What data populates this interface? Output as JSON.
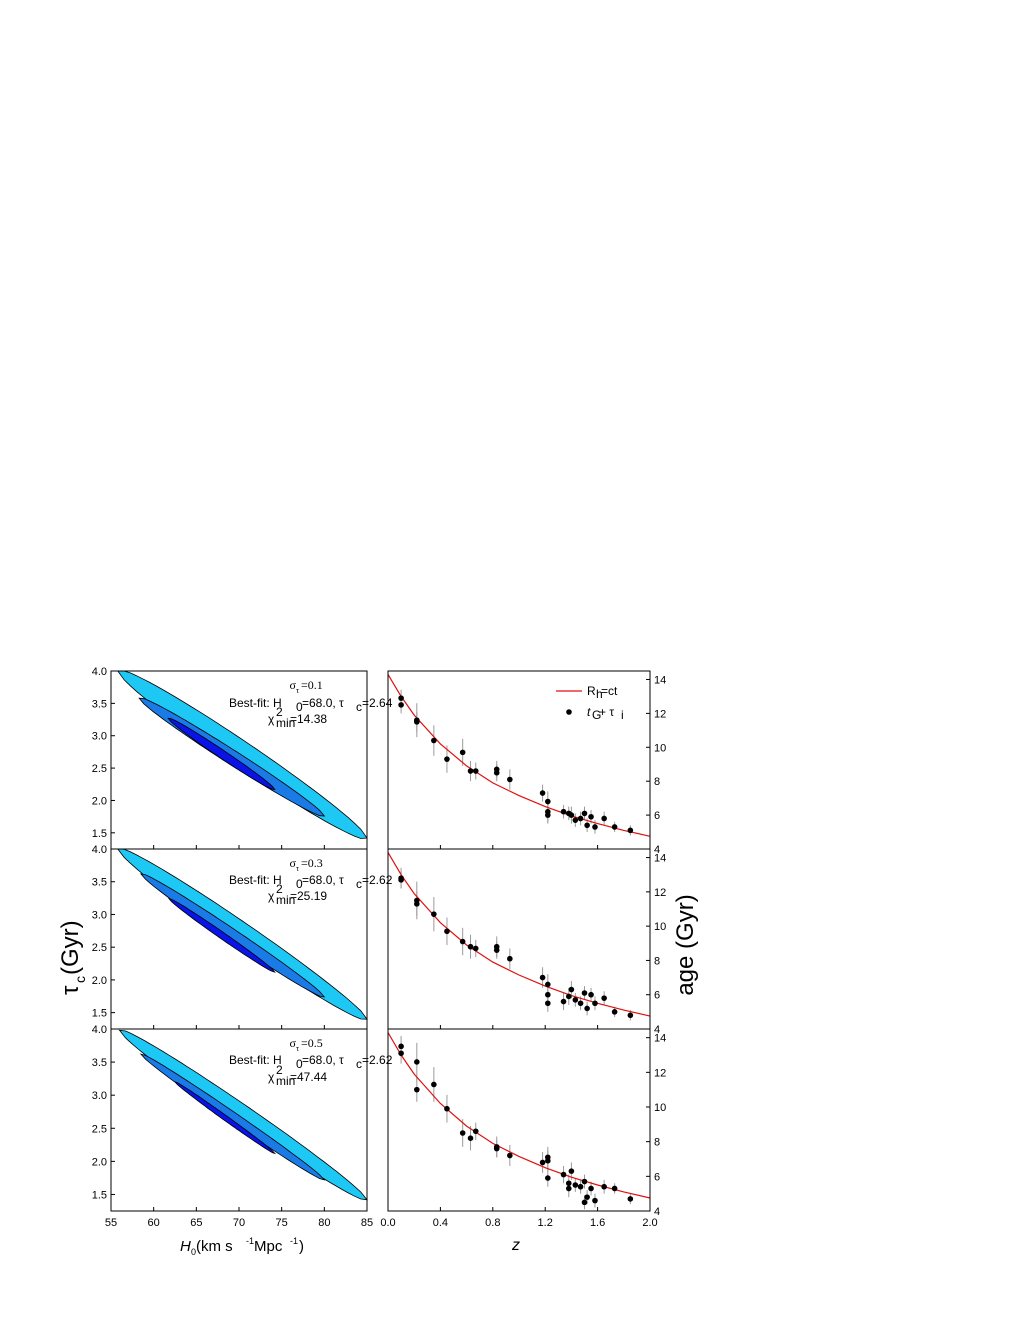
{
  "figure": {
    "left_ylabel_main": "τ",
    "left_ylabel_sub": "c",
    "left_ylabel_unit": " (Gyr)",
    "left_xlabel_main": "H",
    "left_xlabel_sub": "0",
    "left_xlabel_unit": " (km s",
    "left_xlabel_sup1": "-1",
    "left_xlabel_mid": " Mpc",
    "left_xlabel_sup2": "-1",
    "left_xlabel_end": ")",
    "right_ylabel": "age (Gyr)",
    "right_xlabel": "z",
    "legend_line_main": "R",
    "legend_line_sub": "h",
    "legend_line_end": "=ct",
    "legend_dot_t": "t",
    "legend_dot_tsub": "G",
    "legend_dot_plus": " + τ",
    "legend_dot_tausub": "i",
    "colors": {
      "contour_outer": "#1ec8f5",
      "contour_mid": "#1a7be6",
      "contour_inner": "#0a14e6",
      "model_line": "#e01010",
      "points": "#000000",
      "errorbars": "#9a9a9a"
    }
  },
  "panels": [
    {
      "sigma_label": "σ",
      "sigma_sub": "τ",
      "sigma_value": "=0.1",
      "best_fit_line": "Best-fit: H",
      "best_fit_hsub": "0",
      "best_fit_mid": "=68.0, τ",
      "best_fit_tsub": "c",
      "best_fit_value": "=2.64",
      "chi_label": "χ",
      "chi_sup": "2",
      "chi_sub": "min",
      "chi_value": "=14.38"
    },
    {
      "sigma_label": "σ",
      "sigma_sub": "τ",
      "sigma_value": "=0.3",
      "best_fit_line": "Best-fit: H",
      "best_fit_hsub": "0",
      "best_fit_mid": "=68.0, τ",
      "best_fit_tsub": "c",
      "best_fit_value": "=2.62",
      "chi_label": "χ",
      "chi_sup": "2",
      "chi_sub": "min",
      "chi_value": "=25.19"
    },
    {
      "sigma_label": "σ",
      "sigma_sub": "τ",
      "sigma_value": "=0.5",
      "best_fit_line": "Best-fit: H",
      "best_fit_hsub": "0",
      "best_fit_mid": "=68.0, τ",
      "best_fit_tsub": "c",
      "best_fit_value": "=2.62",
      "chi_label": "χ",
      "chi_sup": "2",
      "chi_sub": "min",
      "chi_value": "=47.44"
    }
  ],
  "chart_data": [
    {
      "type": "contour",
      "panel": "left-top",
      "xlim": [
        55,
        85
      ],
      "ylim": [
        1.25,
        4.0
      ],
      "xticks": [
        "55",
        "60",
        "65",
        "70",
        "75",
        "80",
        "85"
      ],
      "yticks": [
        "1.5",
        "2.0",
        "2.5",
        "3.0",
        "3.5",
        "4.0"
      ],
      "levels": [
        {
          "name": "outer",
          "color": "#1ec8f5",
          "ridge": [
            [
              55.8,
              4.0
            ],
            [
              85.0,
              1.42
            ]
          ],
          "half_width": 0.23
        },
        {
          "name": "middle",
          "color": "#1a7be6",
          "ridge": [
            [
              58.3,
              3.58
            ],
            [
              80.0,
              1.76
            ]
          ],
          "half_width": 0.13
        },
        {
          "name": "inner",
          "color": "#0a14e6",
          "ridge": [
            [
              61.7,
              3.27
            ],
            [
              74.2,
              2.17
            ]
          ],
          "half_width": 0.075
        }
      ]
    },
    {
      "type": "contour",
      "panel": "left-middle",
      "xlim": [
        55,
        85
      ],
      "ylim": [
        1.25,
        4.0
      ],
      "xticks": [
        "55",
        "60",
        "65",
        "70",
        "75",
        "80",
        "85"
      ],
      "yticks": [
        "1.5",
        "2.0",
        "2.5",
        "3.0",
        "3.5",
        "4.0"
      ],
      "levels": [
        {
          "name": "outer",
          "color": "#1ec8f5",
          "ridge": [
            [
              55.8,
              4.0
            ],
            [
              85.0,
              1.4
            ]
          ],
          "half_width": 0.2
        },
        {
          "name": "middle",
          "color": "#1a7be6",
          "ridge": [
            [
              58.5,
              3.62
            ],
            [
              80.0,
              1.74
            ]
          ],
          "half_width": 0.11
        },
        {
          "name": "inner",
          "color": "#0a14e6",
          "ridge": [
            [
              61.8,
              3.24
            ],
            [
              74.2,
              2.12
            ]
          ],
          "half_width": 0.06
        }
      ]
    },
    {
      "type": "contour",
      "panel": "left-bottom",
      "xlim": [
        55,
        85
      ],
      "ylim": [
        1.25,
        4.0
      ],
      "xticks": [
        "55",
        "60",
        "65",
        "70",
        "75",
        "80",
        "85"
      ],
      "yticks": [
        "1.5",
        "2.0",
        "2.5",
        "3.0",
        "3.5",
        "4.0"
      ],
      "levels": [
        {
          "name": "outer",
          "color": "#1ec8f5",
          "ridge": [
            [
              56.0,
              3.98
            ],
            [
              85.0,
              1.42
            ]
          ],
          "half_width": 0.17
        },
        {
          "name": "middle",
          "color": "#1a7be6",
          "ridge": [
            [
              58.5,
              3.62
            ],
            [
              80.0,
              1.72
            ]
          ],
          "half_width": 0.09
        },
        {
          "name": "inner",
          "color": "#0a14e6",
          "ridge": [
            [
              62.5,
              3.2
            ],
            [
              74.2,
              2.12
            ]
          ],
          "half_width": 0.045
        }
      ]
    },
    {
      "type": "scatter",
      "panel": "right-top",
      "xlim": [
        0.0,
        2.0
      ],
      "ylim": [
        4,
        14.5
      ],
      "xticks": [
        "0.0",
        "0.4",
        "0.8",
        "1.2",
        "1.6",
        "2.0"
      ],
      "yticks": [
        "4",
        "6",
        "8",
        "10",
        "12",
        "14"
      ],
      "model": {
        "name": "R_h=ct",
        "color": "#e01010",
        "x": [
          0.0,
          0.1,
          0.2,
          0.4,
          0.6,
          0.8,
          1.0,
          1.2,
          1.4,
          1.6,
          1.8,
          2.0
        ],
        "y": [
          14.3,
          13.0,
          11.9,
          10.2,
          8.9,
          7.9,
          7.15,
          6.5,
          5.95,
          5.5,
          5.1,
          4.75
        ]
      },
      "points": [
        {
          "x": 0.1,
          "y": 12.9,
          "err": 0.5
        },
        {
          "x": 0.1,
          "y": 12.5,
          "err": 0.5
        },
        {
          "x": 0.22,
          "y": 11.6,
          "err": 1.0
        },
        {
          "x": 0.22,
          "y": 11.5,
          "err": 0.6
        },
        {
          "x": 0.35,
          "y": 10.4,
          "err": 0.9
        },
        {
          "x": 0.45,
          "y": 9.3,
          "err": 0.8
        },
        {
          "x": 0.57,
          "y": 9.7,
          "err": 0.8
        },
        {
          "x": 0.63,
          "y": 8.6,
          "err": 0.6
        },
        {
          "x": 0.67,
          "y": 8.6,
          "err": 0.5
        },
        {
          "x": 0.83,
          "y": 8.7,
          "err": 0.5
        },
        {
          "x": 0.83,
          "y": 8.5,
          "err": 0.5
        },
        {
          "x": 0.93,
          "y": 8.1,
          "err": 0.6
        },
        {
          "x": 1.18,
          "y": 7.3,
          "err": 0.5
        },
        {
          "x": 1.22,
          "y": 6.8,
          "err": 0.6
        },
        {
          "x": 1.22,
          "y": 6.2,
          "err": 0.6
        },
        {
          "x": 1.22,
          "y": 6.0,
          "err": 0.5
        },
        {
          "x": 1.34,
          "y": 6.2,
          "err": 0.4
        },
        {
          "x": 1.38,
          "y": 6.1,
          "err": 0.4
        },
        {
          "x": 1.4,
          "y": 6.0,
          "err": 0.5
        },
        {
          "x": 1.43,
          "y": 5.7,
          "err": 0.4
        },
        {
          "x": 1.47,
          "y": 5.8,
          "err": 0.4
        },
        {
          "x": 1.5,
          "y": 6.1,
          "err": 0.4
        },
        {
          "x": 1.52,
          "y": 5.4,
          "err": 0.4
        },
        {
          "x": 1.55,
          "y": 5.9,
          "err": 0.4
        },
        {
          "x": 1.58,
          "y": 5.3,
          "err": 0.4
        },
        {
          "x": 1.65,
          "y": 5.8,
          "err": 0.4
        },
        {
          "x": 1.73,
          "y": 5.3,
          "err": 0.3
        },
        {
          "x": 1.85,
          "y": 5.1,
          "err": 0.3
        }
      ],
      "legend": [
        "R_h=ct",
        "t_G + τ_i"
      ]
    },
    {
      "type": "scatter",
      "panel": "right-middle",
      "xlim": [
        0.0,
        2.0
      ],
      "ylim": [
        4,
        14.5
      ],
      "xticks": [
        "0.0",
        "0.4",
        "0.8",
        "1.2",
        "1.6",
        "2.0"
      ],
      "yticks": [
        "4",
        "6",
        "8",
        "10",
        "12",
        "14"
      ],
      "model": {
        "name": "R_h=ct",
        "color": "#e01010",
        "x": [
          0.0,
          0.1,
          0.2,
          0.4,
          0.6,
          0.8,
          1.0,
          1.2,
          1.4,
          1.6,
          1.8,
          2.0
        ],
        "y": [
          14.3,
          13.0,
          11.9,
          10.2,
          8.9,
          7.9,
          7.15,
          6.5,
          5.95,
          5.5,
          5.1,
          4.75
        ]
      },
      "points": [
        {
          "x": 0.1,
          "y": 12.8,
          "err": 0.6
        },
        {
          "x": 0.1,
          "y": 12.7,
          "err": 0.5
        },
        {
          "x": 0.22,
          "y": 11.5,
          "err": 1.1
        },
        {
          "x": 0.22,
          "y": 11.3,
          "err": 0.7
        },
        {
          "x": 0.35,
          "y": 10.7,
          "err": 1.0
        },
        {
          "x": 0.45,
          "y": 9.7,
          "err": 0.8
        },
        {
          "x": 0.57,
          "y": 9.1,
          "err": 0.8
        },
        {
          "x": 0.63,
          "y": 8.8,
          "err": 0.7
        },
        {
          "x": 0.67,
          "y": 8.7,
          "err": 0.5
        },
        {
          "x": 0.83,
          "y": 8.8,
          "err": 0.6
        },
        {
          "x": 0.83,
          "y": 8.6,
          "err": 0.5
        },
        {
          "x": 0.93,
          "y": 8.1,
          "err": 0.6
        },
        {
          "x": 1.18,
          "y": 7.0,
          "err": 0.6
        },
        {
          "x": 1.22,
          "y": 6.6,
          "err": 0.6
        },
        {
          "x": 1.22,
          "y": 6.0,
          "err": 0.6
        },
        {
          "x": 1.22,
          "y": 5.5,
          "err": 0.5
        },
        {
          "x": 1.34,
          "y": 5.6,
          "err": 0.5
        },
        {
          "x": 1.38,
          "y": 5.9,
          "err": 0.5
        },
        {
          "x": 1.4,
          "y": 6.3,
          "err": 0.5
        },
        {
          "x": 1.43,
          "y": 5.7,
          "err": 0.4
        },
        {
          "x": 1.47,
          "y": 5.5,
          "err": 0.4
        },
        {
          "x": 1.5,
          "y": 6.1,
          "err": 0.4
        },
        {
          "x": 1.52,
          "y": 5.2,
          "err": 0.4
        },
        {
          "x": 1.55,
          "y": 6.0,
          "err": 0.4
        },
        {
          "x": 1.58,
          "y": 5.5,
          "err": 0.4
        },
        {
          "x": 1.65,
          "y": 5.8,
          "err": 0.4
        },
        {
          "x": 1.73,
          "y": 5.0,
          "err": 0.3
        },
        {
          "x": 1.85,
          "y": 4.8,
          "err": 0.3
        }
      ]
    },
    {
      "type": "scatter",
      "panel": "right-bottom",
      "xlim": [
        0.0,
        2.0
      ],
      "ylim": [
        4,
        14.5
      ],
      "xticks": [
        "0.0",
        "0.4",
        "0.8",
        "1.2",
        "1.6",
        "2.0"
      ],
      "yticks": [
        "4",
        "6",
        "8",
        "10",
        "12",
        "14"
      ],
      "model": {
        "name": "R_h=ct",
        "color": "#e01010",
        "x": [
          0.0,
          0.1,
          0.2,
          0.4,
          0.6,
          0.8,
          1.0,
          1.2,
          1.4,
          1.6,
          1.8,
          2.0
        ],
        "y": [
          14.3,
          13.0,
          11.9,
          10.2,
          8.9,
          7.9,
          7.15,
          6.5,
          5.95,
          5.5,
          5.1,
          4.75
        ]
      },
      "points": [
        {
          "x": 0.1,
          "y": 13.5,
          "err": 0.6
        },
        {
          "x": 0.1,
          "y": 13.1,
          "err": 0.6
        },
        {
          "x": 0.22,
          "y": 12.6,
          "err": 1.1
        },
        {
          "x": 0.22,
          "y": 11.0,
          "err": 0.7
        },
        {
          "x": 0.35,
          "y": 11.3,
          "err": 1.0
        },
        {
          "x": 0.45,
          "y": 9.9,
          "err": 0.8
        },
        {
          "x": 0.57,
          "y": 8.5,
          "err": 0.8
        },
        {
          "x": 0.63,
          "y": 8.2,
          "err": 0.7
        },
        {
          "x": 0.67,
          "y": 8.6,
          "err": 0.5
        },
        {
          "x": 0.83,
          "y": 7.7,
          "err": 0.6
        },
        {
          "x": 0.83,
          "y": 7.6,
          "err": 0.5
        },
        {
          "x": 0.93,
          "y": 7.2,
          "err": 0.6
        },
        {
          "x": 1.18,
          "y": 6.8,
          "err": 0.6
        },
        {
          "x": 1.22,
          "y": 7.1,
          "err": 0.6
        },
        {
          "x": 1.22,
          "y": 6.9,
          "err": 0.6
        },
        {
          "x": 1.22,
          "y": 5.9,
          "err": 0.5
        },
        {
          "x": 1.34,
          "y": 6.1,
          "err": 0.5
        },
        {
          "x": 1.38,
          "y": 5.6,
          "err": 0.5
        },
        {
          "x": 1.38,
          "y": 5.3,
          "err": 0.5
        },
        {
          "x": 1.4,
          "y": 6.3,
          "err": 0.5
        },
        {
          "x": 1.43,
          "y": 5.5,
          "err": 0.4
        },
        {
          "x": 1.47,
          "y": 5.4,
          "err": 0.4
        },
        {
          "x": 1.5,
          "y": 5.7,
          "err": 0.4
        },
        {
          "x": 1.5,
          "y": 4.5,
          "err": 0.4
        },
        {
          "x": 1.52,
          "y": 4.8,
          "err": 0.4
        },
        {
          "x": 1.55,
          "y": 5.3,
          "err": 0.4
        },
        {
          "x": 1.58,
          "y": 4.6,
          "err": 0.4
        },
        {
          "x": 1.65,
          "y": 5.4,
          "err": 0.4
        },
        {
          "x": 1.73,
          "y": 5.3,
          "err": 0.3
        },
        {
          "x": 1.85,
          "y": 4.7,
          "err": 0.3
        }
      ]
    }
  ]
}
